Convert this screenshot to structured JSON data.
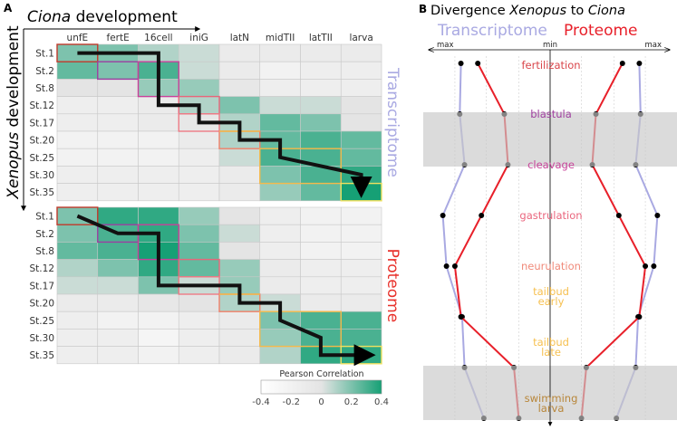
{
  "panel_a": {
    "letter": "A",
    "x_title": {
      "italic": "Ciona",
      "rest": " development"
    },
    "y_title": {
      "italic": "Xenopus",
      "rest": " development"
    },
    "colorbar": {
      "title": "Pearson Correlation",
      "ticks": [
        "-0.4",
        "-0.2",
        "0",
        "0.2",
        "0.4"
      ],
      "range": [
        -0.4,
        0.4
      ],
      "low_color": "#ffffff",
      "mid_color": "#e4e4e4",
      "high_color": "#16a075"
    }
  },
  "panel_b": {
    "letter": "B",
    "title": {
      "pre": "Divergence ",
      "italic1": "Xenopus",
      "mid": " to ",
      "italic2": "Ciona"
    },
    "legend": {
      "transcriptome": "Transcriptome",
      "proteome": "Proteome"
    },
    "axis": {
      "left": "max",
      "center": "min",
      "right": "max"
    }
  },
  "chart_data": [
    {
      "type": "heatmap",
      "name": "Transcriptome",
      "label_color": "#a9a9e2",
      "columns": [
        "unfE",
        "fertE",
        "16cell",
        "iniG",
        "latN",
        "midTII",
        "latTII",
        "larva"
      ],
      "rows": [
        "St.1",
        "St.2",
        "St.8",
        "St.12",
        "St.17",
        "St.20",
        "St.25",
        "St.30",
        "St.35"
      ],
      "values": [
        [
          0.2,
          0.2,
          0.1,
          0.05,
          -0.1,
          -0.1,
          -0.1,
          -0.1
        ],
        [
          0.25,
          0.2,
          0.3,
          0.05,
          -0.1,
          -0.2,
          -0.15,
          -0.15
        ],
        [
          0.0,
          0.0,
          0.15,
          0.15,
          -0.05,
          -0.15,
          -0.15,
          -0.15
        ],
        [
          -0.15,
          -0.15,
          -0.1,
          0.1,
          0.2,
          0.05,
          0.05,
          0.0
        ],
        [
          -0.15,
          -0.15,
          -0.1,
          -0.05,
          0.1,
          0.25,
          0.2,
          0.0
        ],
        [
          -0.2,
          -0.2,
          -0.2,
          -0.1,
          0.1,
          0.25,
          0.3,
          0.25
        ],
        [
          -0.2,
          -0.2,
          -0.2,
          -0.15,
          0.05,
          0.3,
          0.3,
          0.25
        ],
        [
          -0.15,
          -0.15,
          -0.15,
          -0.15,
          -0.1,
          0.2,
          0.3,
          0.35
        ],
        [
          -0.15,
          -0.15,
          -0.15,
          -0.15,
          -0.1,
          0.15,
          0.25,
          0.4
        ]
      ],
      "boxes": [
        {
          "cols": [
            0,
            0
          ],
          "rows": [
            0,
            0
          ],
          "color": "#c0392b"
        },
        {
          "cols": [
            1,
            1
          ],
          "rows": [
            1,
            1
          ],
          "color": "#9b3fa0"
        },
        {
          "cols": [
            2,
            2
          ],
          "rows": [
            1,
            2
          ],
          "color": "#c9409a"
        },
        {
          "cols": [
            3,
            3
          ],
          "rows": [
            3,
            3
          ],
          "color": "#e8667a"
        },
        {
          "cols": [
            3,
            3
          ],
          "rows": [
            4,
            4
          ],
          "color": "#ee7a86"
        },
        {
          "cols": [
            4,
            4
          ],
          "rows": [
            5,
            5
          ],
          "color": "#f0806a"
        },
        {
          "cols": [
            4,
            4
          ],
          "rows": [
            5,
            5
          ],
          "color": "#f5b94a",
          "edge": "top"
        },
        {
          "cols": [
            5,
            6
          ],
          "rows": [
            6,
            7
          ],
          "color": "#f5b94a"
        },
        {
          "cols": [
            7,
            7
          ],
          "rows": [
            8,
            8
          ],
          "color": "#f0e060"
        }
      ],
      "trajectory": [
        [
          0.5,
          0.5
        ],
        [
          2.5,
          0.5
        ],
        [
          2.5,
          3.5
        ],
        [
          3.5,
          3.5
        ],
        [
          3.5,
          4.5
        ],
        [
          4.5,
          4.5
        ],
        [
          4.5,
          5.5
        ],
        [
          5.5,
          5.5
        ],
        [
          5.5,
          6.5
        ],
        [
          7.5,
          7.5
        ],
        [
          7.5,
          8.6
        ]
      ]
    },
    {
      "type": "heatmap",
      "name": "Proteome",
      "label_color": "#e8302a",
      "columns": [
        "unfE",
        "fertE",
        "16cell",
        "iniG",
        "latN",
        "midTII",
        "latTII",
        "larva"
      ],
      "rows": [
        "St.1",
        "St.2",
        "St.8",
        "St.12",
        "St.17",
        "St.20",
        "St.25",
        "St.30",
        "St.35"
      ],
      "values": [
        [
          0.2,
          0.35,
          0.35,
          0.15,
          0.0,
          -0.15,
          -0.2,
          -0.2
        ],
        [
          0.2,
          0.3,
          0.35,
          0.2,
          0.05,
          -0.15,
          -0.2,
          -0.2
        ],
        [
          0.25,
          0.3,
          0.4,
          0.25,
          0.0,
          -0.15,
          -0.2,
          -0.2
        ],
        [
          0.1,
          0.2,
          0.35,
          0.25,
          0.15,
          -0.1,
          -0.15,
          -0.15
        ],
        [
          0.05,
          0.05,
          0.2,
          0.05,
          0.15,
          -0.1,
          -0.15,
          -0.15
        ],
        [
          -0.1,
          -0.1,
          -0.05,
          0.0,
          0.1,
          0.05,
          -0.1,
          -0.1
        ],
        [
          -0.15,
          -0.2,
          -0.2,
          -0.15,
          -0.1,
          0.2,
          0.3,
          0.3
        ],
        [
          -0.15,
          -0.15,
          -0.25,
          -0.15,
          -0.1,
          0.15,
          0.3,
          0.3
        ],
        [
          -0.15,
          -0.15,
          -0.2,
          -0.15,
          -0.1,
          0.1,
          0.35,
          0.35
        ]
      ],
      "boxes": [
        {
          "cols": [
            0,
            0
          ],
          "rows": [
            0,
            0
          ],
          "color": "#c0392b"
        },
        {
          "cols": [
            1,
            1
          ],
          "rows": [
            1,
            1
          ],
          "color": "#9b3fa0"
        },
        {
          "cols": [
            2,
            2
          ],
          "rows": [
            1,
            2
          ],
          "color": "#c9409a"
        },
        {
          "cols": [
            3,
            3
          ],
          "rows": [
            3,
            3
          ],
          "color": "#e8667a"
        },
        {
          "cols": [
            3,
            3
          ],
          "rows": [
            4,
            4
          ],
          "color": "#ee7a86"
        },
        {
          "cols": [
            4,
            4
          ],
          "rows": [
            5,
            5
          ],
          "color": "#f0806a"
        },
        {
          "cols": [
            4,
            4
          ],
          "rows": [
            5,
            5
          ],
          "color": "#f5b94a",
          "edge": "top"
        },
        {
          "cols": [
            5,
            6
          ],
          "rows": [
            6,
            7
          ],
          "color": "#f5b94a"
        },
        {
          "cols": [
            7,
            7
          ],
          "rows": [
            8,
            8
          ],
          "color": "#f0e060"
        }
      ],
      "trajectory": [
        [
          0.5,
          0.5
        ],
        [
          1.5,
          1.5
        ],
        [
          2.5,
          1.5
        ],
        [
          2.5,
          4.5
        ],
        [
          4.5,
          4.5
        ],
        [
          4.5,
          5.5
        ],
        [
          5.5,
          5.5
        ],
        [
          5.5,
          6.5
        ],
        [
          6.5,
          7.5
        ],
        [
          6.5,
          8.5
        ],
        [
          7.75,
          8.5
        ]
      ]
    },
    {
      "type": "line",
      "title": "Divergence Xenopus to Ciona",
      "orientation": "vertical, mirrored about center axis (min at center, max at edges)",
      "stages": [
        {
          "label": [
            "fertilization"
          ],
          "color": "#d9454a",
          "band": false
        },
        {
          "label": [
            "blastula"
          ],
          "color": "#a040a0",
          "band": true
        },
        {
          "label": [
            "cleavage"
          ],
          "color": "#c8449a",
          "band": true
        },
        {
          "label": [
            "gastrulation"
          ],
          "color": "#ea667e",
          "band": false
        },
        {
          "label": [
            "neurulation"
          ],
          "color": "#f08a7a",
          "band": false
        },
        {
          "label": [
            "tailbud",
            "early"
          ],
          "color": "#f6c050",
          "band": false
        },
        {
          "label": [
            "tailbud",
            "late"
          ],
          "color": "#f6c050",
          "band": false
        },
        {
          "label": [
            "swimming",
            "larva"
          ],
          "color": "#b8863a",
          "band": true
        }
      ],
      "series": [
        {
          "name": "Transcriptome",
          "color": "#a9a9e2",
          "values": [
            0.74,
            0.75,
            0.71,
            0.89,
            0.86,
            0.73,
            0.71,
            0.55
          ]
        },
        {
          "name": "Proteome",
          "color": "#e8202a",
          "values": [
            0.6,
            0.38,
            0.35,
            0.57,
            0.79,
            0.74,
            0.3,
            0.26
          ]
        }
      ],
      "xlim": [
        0,
        1
      ]
    }
  ]
}
